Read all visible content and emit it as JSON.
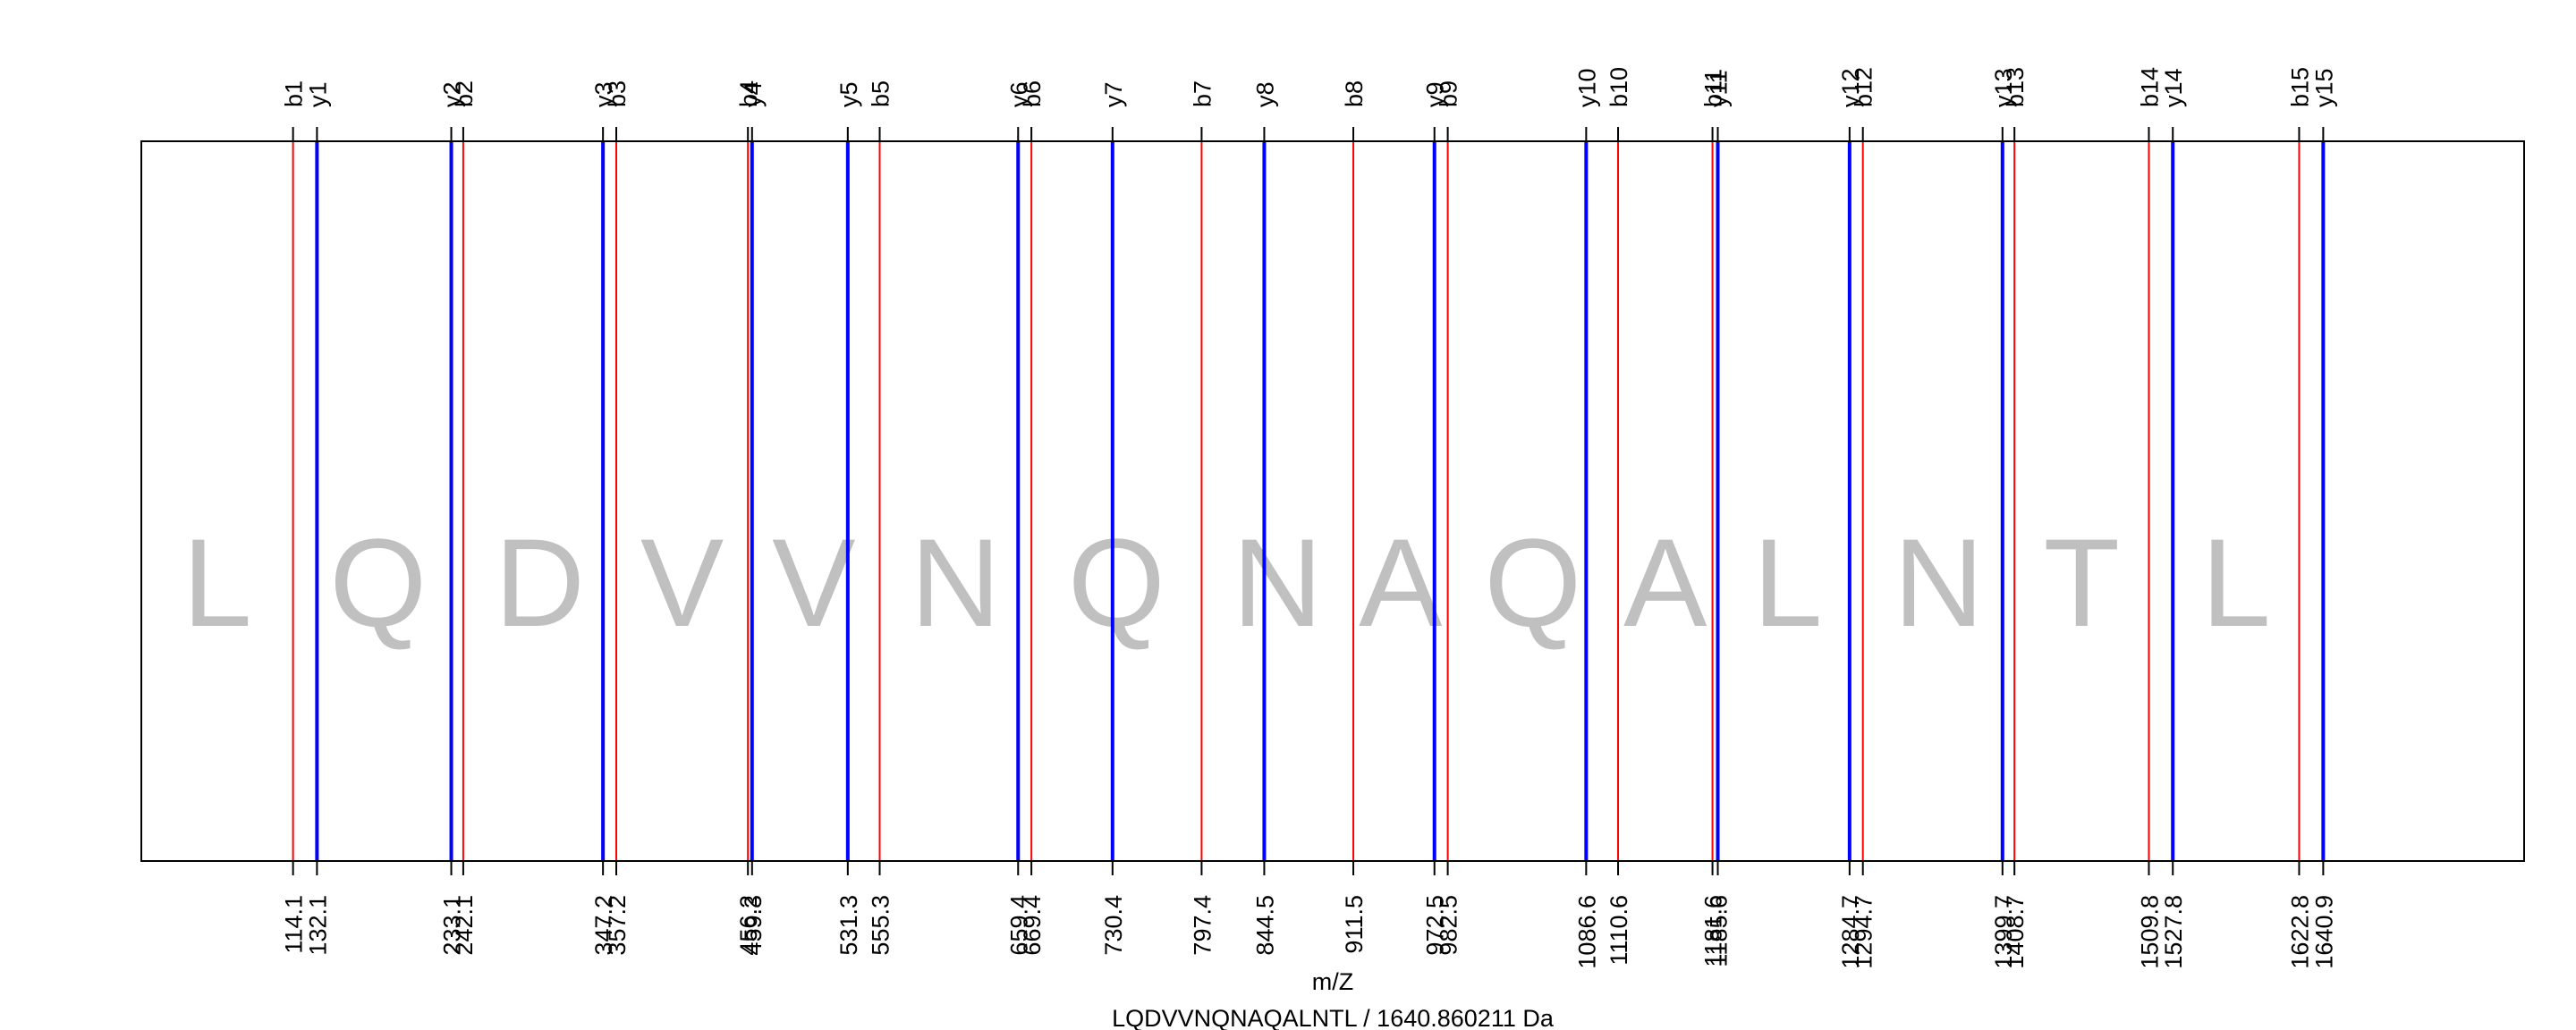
{
  "chart_data": {
    "type": "spectrum",
    "xlabel": "m/Z",
    "caption": "LQDVVNQNAQALNTL / 1640.860211 Da",
    "sequence": [
      "L",
      "Q",
      "D",
      "V",
      "V",
      "N",
      "Q",
      "N",
      "A",
      "Q",
      "A",
      "L",
      "N",
      "T",
      "L"
    ],
    "xlim": [
      0,
      1792
    ],
    "colors": {
      "b": "#ff0000",
      "y": "#0000ff",
      "residue": "#c0c0c0"
    },
    "b_ions": [
      {
        "name": "b1",
        "mz": 114.1,
        "label": "114.1"
      },
      {
        "name": "b2",
        "mz": 242.1,
        "label": "242.1"
      },
      {
        "name": "b3",
        "mz": 357.2,
        "label": "357.2"
      },
      {
        "name": "b4",
        "mz": 456.2,
        "label": "456.2"
      },
      {
        "name": "b5",
        "mz": 555.3,
        "label": "555.3"
      },
      {
        "name": "b6",
        "mz": 669.4,
        "label": "669.4"
      },
      {
        "name": "b7",
        "mz": 797.4,
        "label": "797.4"
      },
      {
        "name": "b8",
        "mz": 911.5,
        "label": "911.5"
      },
      {
        "name": "b9",
        "mz": 982.5,
        "label": "982.5"
      },
      {
        "name": "b10",
        "mz": 1110.6,
        "label": "1110.6"
      },
      {
        "name": "b11",
        "mz": 1181.6,
        "label": "1181.6"
      },
      {
        "name": "b12",
        "mz": 1294.7,
        "label": "1294.7"
      },
      {
        "name": "b13",
        "mz": 1408.7,
        "label": "1408.7"
      },
      {
        "name": "b14",
        "mz": 1509.8,
        "label": "1509.8"
      },
      {
        "name": "b15",
        "mz": 1622.8,
        "label": "1622.8"
      }
    ],
    "y_ions": [
      {
        "name": "y1",
        "mz": 132.1,
        "label": "132.1"
      },
      {
        "name": "y2",
        "mz": 233.1,
        "label": "233.1"
      },
      {
        "name": "y3",
        "mz": 347.2,
        "label": "347.2"
      },
      {
        "name": "y4",
        "mz": 459.3,
        "label": "459.3"
      },
      {
        "name": "y5",
        "mz": 531.3,
        "label": "531.3"
      },
      {
        "name": "y6",
        "mz": 659.4,
        "label": "659.4"
      },
      {
        "name": "y7",
        "mz": 730.4,
        "label": "730.4"
      },
      {
        "name": "y8",
        "mz": 844.5,
        "label": "844.5"
      },
      {
        "name": "y9",
        "mz": 972.5,
        "label": "972.5"
      },
      {
        "name": "y10",
        "mz": 1086.6,
        "label": "1086.6"
      },
      {
        "name": "y11",
        "mz": 1185.6,
        "label": "1185.6"
      },
      {
        "name": "y12",
        "mz": 1284.7,
        "label": "1284.7"
      },
      {
        "name": "y13",
        "mz": 1399.7,
        "label": "1399.7"
      },
      {
        "name": "y14",
        "mz": 1527.8,
        "label": "1527.8"
      },
      {
        "name": "y15",
        "mz": 1640.9,
        "label": "1640.9"
      }
    ]
  }
}
